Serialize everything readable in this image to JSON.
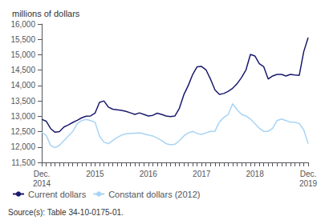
{
  "chart_data": {
    "type": "line",
    "title": "millions of dollars",
    "categories": [
      "Dec.\n2014",
      null,
      null,
      null,
      null,
      null,
      null,
      null,
      null,
      null,
      null,
      null,
      "2015",
      null,
      null,
      null,
      null,
      null,
      null,
      null,
      null,
      null,
      null,
      null,
      "2016",
      null,
      null,
      null,
      null,
      null,
      null,
      null,
      null,
      null,
      null,
      null,
      "2017",
      null,
      null,
      null,
      null,
      null,
      null,
      null,
      null,
      null,
      null,
      null,
      "2018",
      null,
      null,
      null,
      null,
      null,
      null,
      null,
      null,
      null,
      null,
      null,
      "Dec.\n2019"
    ],
    "series": [
      {
        "name": "Current dollars",
        "color": "#1a1a6e",
        "values": [
          12900,
          12840,
          12600,
          12480,
          12500,
          12650,
          12720,
          12800,
          12870,
          12950,
          13000,
          13010,
          13100,
          13450,
          13500,
          13300,
          13230,
          13210,
          13190,
          13160,
          13110,
          13060,
          13110,
          13060,
          13010,
          13030,
          13100,
          13060,
          13010,
          12990,
          13010,
          13260,
          13700,
          14000,
          14360,
          14610,
          14620,
          14510,
          14210,
          13860,
          13710,
          13740,
          13810,
          13910,
          14060,
          14260,
          14510,
          15010,
          14960,
          14710,
          14610,
          14210,
          14310,
          14360,
          14360,
          14310,
          14360,
          14340,
          14330,
          15100,
          15560
        ]
      },
      {
        "name": "Constant dollars (2012)",
        "color": "#a8d4f5",
        "values": [
          12480,
          12380,
          12050,
          11980,
          12060,
          12210,
          12360,
          12510,
          12760,
          12860,
          12900,
          12860,
          12810,
          12360,
          12160,
          12110,
          12210,
          12310,
          12390,
          12430,
          12440,
          12450,
          12460,
          12430,
          12390,
          12360,
          12290,
          12210,
          12110,
          12070,
          12090,
          12210,
          12360,
          12460,
          12510,
          12440,
          12410,
          12460,
          12510,
          12510,
          12810,
          12960,
          13060,
          13410,
          13210,
          13060,
          13010,
          12910,
          12760,
          12610,
          12510,
          12510,
          12610,
          12860,
          12910,
          12860,
          12810,
          12810,
          12760,
          12560,
          12110
        ]
      }
    ],
    "ylim": [
      11500,
      16000
    ],
    "yticks": [
      {
        "value": 11500,
        "label": "11,500"
      },
      {
        "value": 12000,
        "label": "12,000"
      },
      {
        "value": 12500,
        "label": "12,500"
      },
      {
        "value": 13000,
        "label": "13,000"
      },
      {
        "value": 13500,
        "label": "13,500"
      },
      {
        "value": 14000,
        "label": "14,000"
      },
      {
        "value": 14500,
        "label": "14,500"
      },
      {
        "value": 15000,
        "label": "15,000"
      },
      {
        "value": 15500,
        "label": "15,500"
      },
      {
        "value": 16000,
        "label": "16,000"
      }
    ],
    "grid": false,
    "legend": "lower left",
    "annotations": [
      "Source(s): Table 34-10-0175-01."
    ]
  }
}
